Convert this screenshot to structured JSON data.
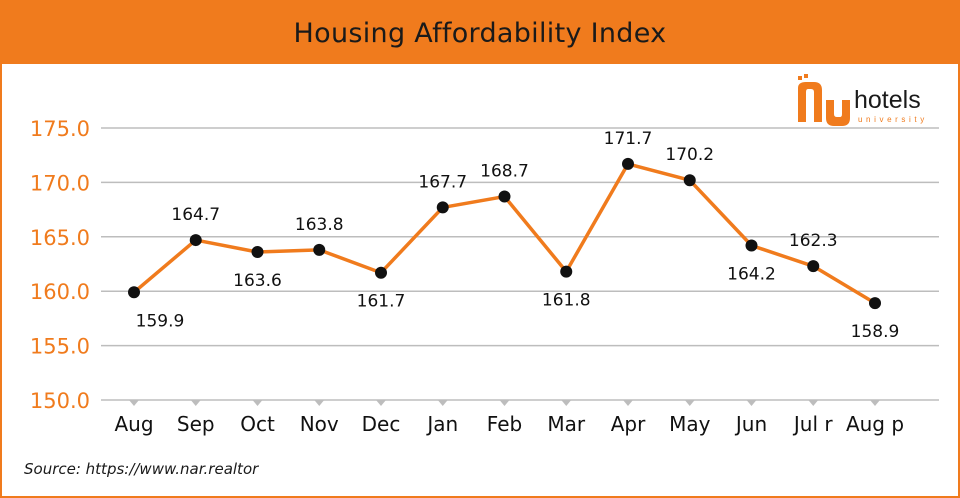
{
  "title": "Housing Affordability Index",
  "source": "Source: https://www.nar.realtor",
  "logo": {
    "text": "hotels",
    "subtext": "university"
  },
  "colors": {
    "accent": "#f07b1d",
    "line": "#f07b1d",
    "marker": "#111111",
    "grid": "#bdbdbd",
    "tick_label": "#f07b1d",
    "text": "#111111"
  },
  "chart_data": {
    "type": "line",
    "categories": [
      "Aug",
      "Sep",
      "Oct",
      "Nov",
      "Dec",
      "Jan",
      "Feb",
      "Mar",
      "Apr",
      "May",
      "Jun",
      "Jul r",
      "Aug p"
    ],
    "series": [
      {
        "values": [
          159.9,
          164.7,
          163.6,
          163.8,
          161.7,
          167.7,
          168.7,
          161.8,
          171.7,
          170.2,
          164.2,
          162.3,
          158.9
        ],
        "labels": [
          "159.9",
          "164.7",
          "163.6",
          "163.8",
          "161.7",
          "167.7",
          "168.7",
          "161.8",
          "171.7",
          "170.2",
          "164.2",
          "162.3",
          "158.9"
        ],
        "label_position": [
          "below",
          "above",
          "below",
          "above",
          "below",
          "above",
          "above",
          "below",
          "above",
          "above",
          "below",
          "above",
          "below"
        ]
      }
    ],
    "yticks": [
      "150.0",
      "155.0",
      "160.0",
      "165.0",
      "170.0",
      "175.0"
    ],
    "ylim": [
      150,
      175
    ],
    "grid": true,
    "legend": "none"
  }
}
